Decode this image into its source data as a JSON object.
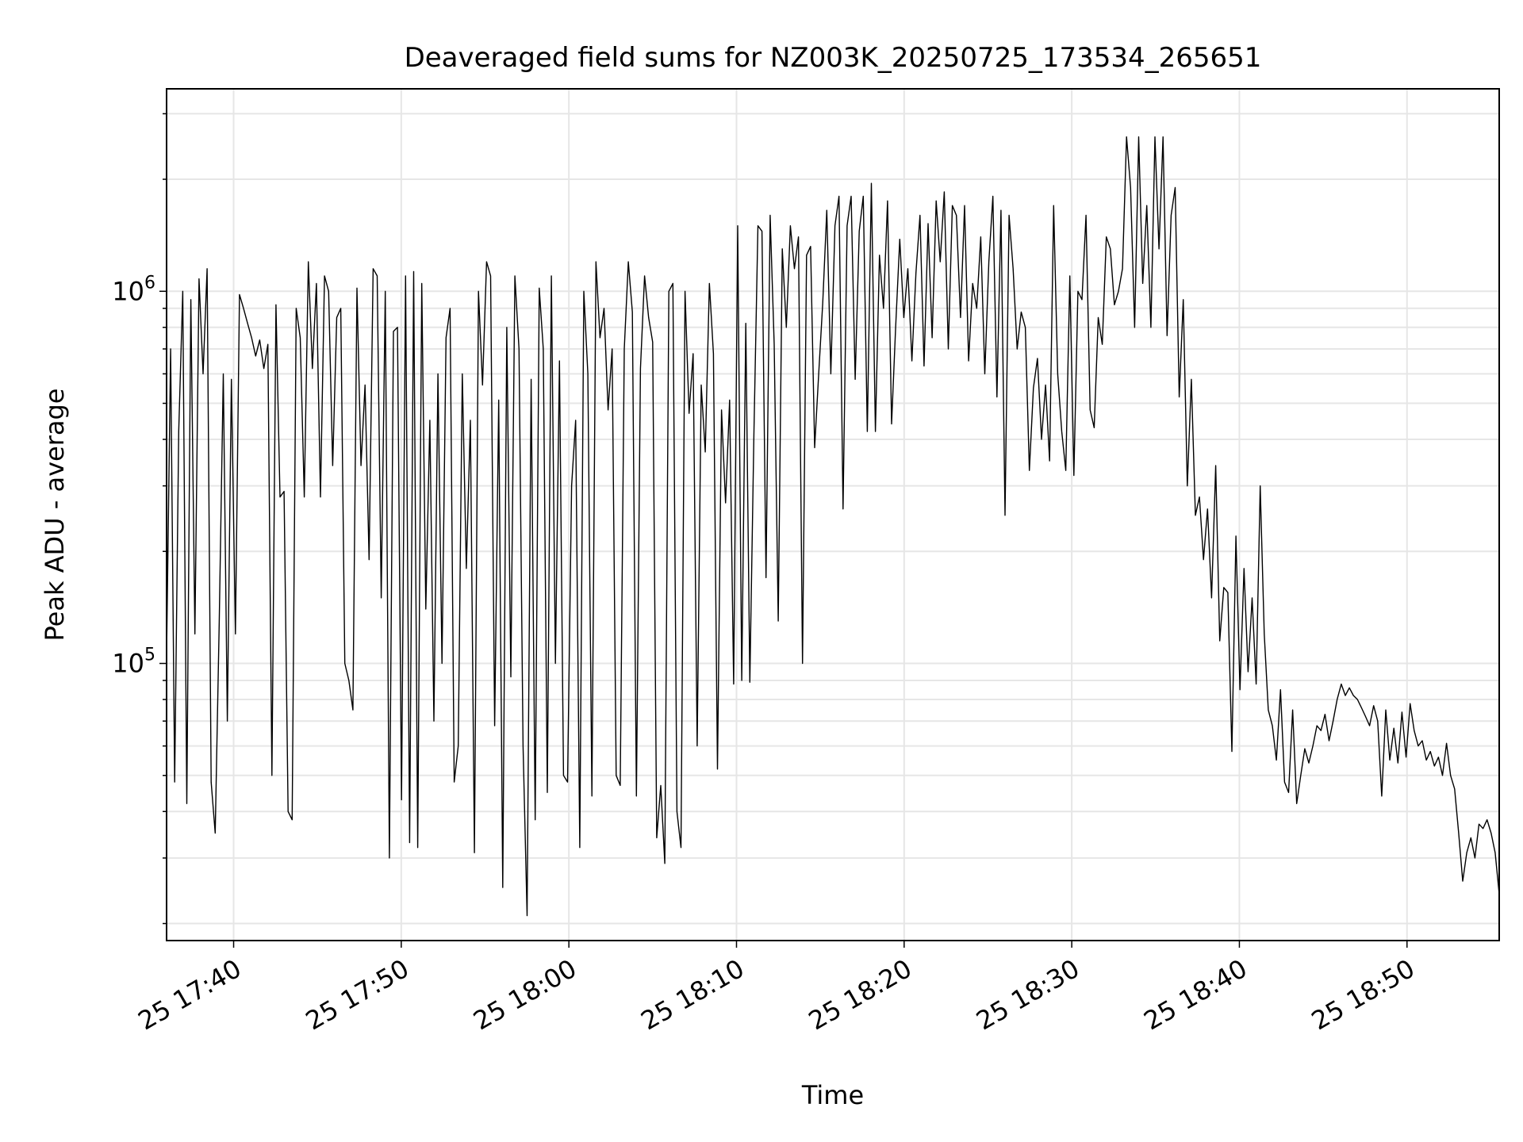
{
  "chart_data": {
    "type": "line",
    "title": "Deaveraged field sums for NZ003K_20250725_173534_265651",
    "xlabel": "Time",
    "ylabel": "Peak ADU - average",
    "yscale": "log",
    "ylim": [
      18000,
      3500000
    ],
    "xlim": [
      "2025-07-25 17:36:00",
      "2025-07-25 18:55:30"
    ],
    "grid": true,
    "line_color": "#000000",
    "grid_color": "#e6e6e6",
    "x_ticks": [
      {
        "value": "2025-07-25 17:40",
        "label": "25 17:40"
      },
      {
        "value": "2025-07-25 17:50",
        "label": "25 17:50"
      },
      {
        "value": "2025-07-25 18:00",
        "label": "25 18:00"
      },
      {
        "value": "2025-07-25 18:10",
        "label": "25 18:10"
      },
      {
        "value": "2025-07-25 18:20",
        "label": "25 18:20"
      },
      {
        "value": "2025-07-25 18:30",
        "label": "25 18:30"
      },
      {
        "value": "2025-07-25 18:40",
        "label": "25 18:40"
      },
      {
        "value": "2025-07-25 18:50",
        "label": "25 18:50"
      }
    ],
    "y_major_ticks": [
      {
        "value": 100000,
        "base": "10",
        "exp": "5"
      },
      {
        "value": 1000000,
        "base": "10",
        "exp": "6"
      }
    ],
    "series": [
      {
        "x_start": "2025-07-25 17:36:00",
        "x_end": "2025-07-25 18:55:30",
        "values": [
          105000,
          700000,
          48000,
          420000,
          1000000,
          42000,
          950000,
          120000,
          1080000,
          600000,
          1150000,
          48000,
          35000,
          130000,
          600000,
          70000,
          580000,
          120000,
          980000,
          900000,
          820000,
          750000,
          670000,
          740000,
          620000,
          720000,
          50000,
          920000,
          280000,
          290000,
          40000,
          38000,
          900000,
          750000,
          280000,
          1200000,
          620000,
          1050000,
          280000,
          1100000,
          1000000,
          340000,
          850000,
          900000,
          100000,
          90000,
          75000,
          1020000,
          340000,
          560000,
          190000,
          1150000,
          1100000,
          150000,
          1000000,
          30000,
          780000,
          800000,
          43000,
          1100000,
          33000,
          1130000,
          32000,
          1050000,
          140000,
          450000,
          70000,
          600000,
          100000,
          750000,
          900000,
          48000,
          60000,
          600000,
          180000,
          450000,
          31000,
          1000000,
          560000,
          1200000,
          1100000,
          68000,
          510000,
          25000,
          800000,
          92000,
          1100000,
          700000,
          60000,
          21000,
          580000,
          38000,
          1020000,
          700000,
          45000,
          1100000,
          100000,
          650000,
          50000,
          48000,
          300000,
          450000,
          32000,
          1000000,
          600000,
          44000,
          1200000,
          750000,
          900000,
          480000,
          700000,
          50000,
          47000,
          700000,
          1200000,
          880000,
          44000,
          620000,
          1100000,
          850000,
          730000,
          34000,
          47000,
          29000,
          1000000,
          1050000,
          40000,
          32000,
          1000000,
          470000,
          680000,
          60000,
          560000,
          370000,
          1050000,
          680000,
          52000,
          480000,
          270000,
          510000,
          88000,
          1500000,
          90000,
          820000,
          89000,
          410000,
          1500000,
          1450000,
          170000,
          1600000,
          720000,
          130000,
          1300000,
          800000,
          1500000,
          1150000,
          1400000,
          100000,
          1250000,
          1320000,
          380000,
          600000,
          930000,
          1650000,
          600000,
          1500000,
          1800000,
          260000,
          1500000,
          1800000,
          580000,
          1450000,
          1800000,
          420000,
          1950000,
          420000,
          1250000,
          900000,
          1750000,
          440000,
          800000,
          1380000,
          850000,
          1150000,
          650000,
          1120000,
          1600000,
          630000,
          1520000,
          750000,
          1750000,
          1200000,
          1850000,
          700000,
          1700000,
          1600000,
          850000,
          1700000,
          650000,
          1050000,
          900000,
          1400000,
          600000,
          1200000,
          1800000,
          520000,
          1650000,
          250000,
          1600000,
          1150000,
          700000,
          880000,
          800000,
          330000,
          550000,
          660000,
          400000,
          560000,
          350000,
          1700000,
          600000,
          420000,
          330000,
          1100000,
          320000,
          1000000,
          950000,
          1600000,
          480000,
          430000,
          850000,
          720000,
          1400000,
          1300000,
          920000,
          1000000,
          1150000,
          2600000,
          1900000,
          800000,
          2600000,
          1050000,
          1700000,
          800000,
          2600000,
          1300000,
          2600000,
          760000,
          1600000,
          1900000,
          520000,
          950000,
          300000,
          580000,
          250000,
          280000,
          190000,
          260000,
          150000,
          340000,
          115000,
          160000,
          155000,
          58000,
          220000,
          85000,
          180000,
          95000,
          150000,
          88000,
          300000,
          120000,
          75000,
          68000,
          55000,
          85000,
          48000,
          45000,
          75000,
          42000,
          50000,
          59000,
          54000,
          60000,
          68000,
          66000,
          73000,
          62000,
          70000,
          80000,
          88000,
          82000,
          86000,
          82000,
          80000,
          76000,
          72000,
          68000,
          77000,
          70000,
          44000,
          75000,
          55000,
          67000,
          54000,
          74000,
          56000,
          78000,
          66000,
          60000,
          62000,
          55000,
          58000,
          53000,
          56000,
          50000,
          61000,
          50000,
          46000,
          35000,
          26000,
          31000,
          34000,
          30000,
          37000,
          36000,
          38000,
          35000,
          31000,
          24000
        ]
      }
    ]
  }
}
